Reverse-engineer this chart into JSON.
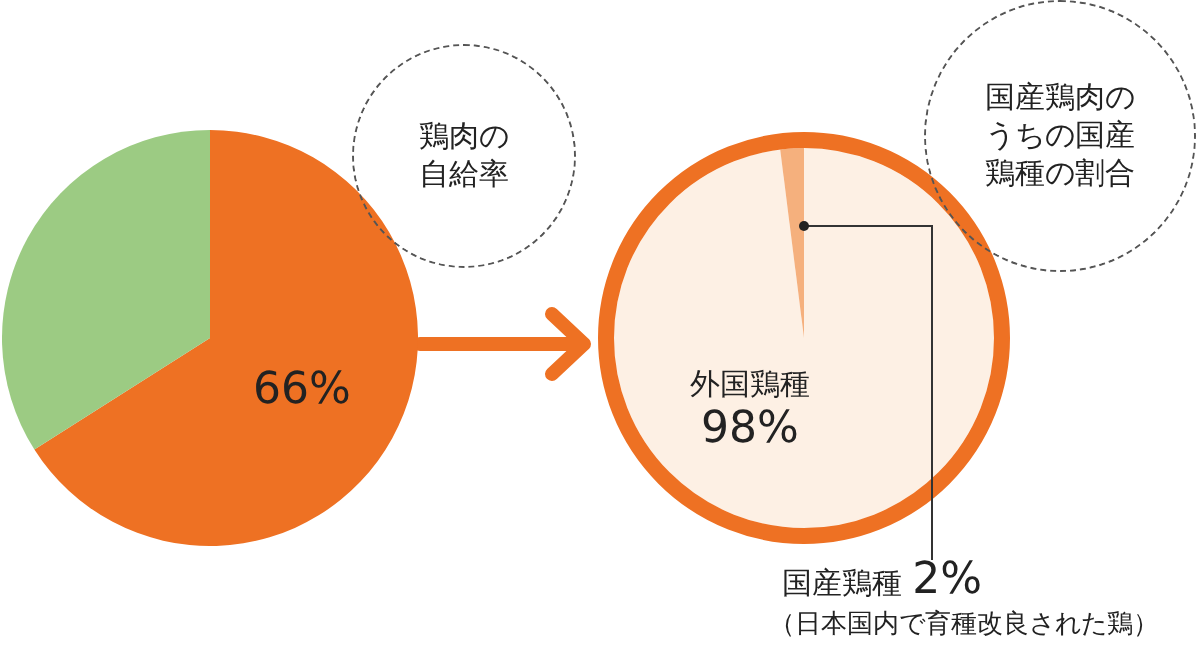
{
  "chart_data": [
    {
      "type": "pie",
      "title": "鶏肉の自給率",
      "categories": [
        null,
        null
      ],
      "values": [
        66,
        34
      ],
      "colors": [
        "#ee7123",
        "#9ccb83"
      ],
      "value_labels": [
        "66%",
        null
      ]
    },
    {
      "type": "pie",
      "title": "国産鶏肉のうちの国産鶏種の割合",
      "categories": [
        "外国鶏種",
        "国産鶏種"
      ],
      "values": [
        98,
        2
      ],
      "colors": [
        "#fdf0e4",
        "#f5b07d"
      ],
      "value_labels": [
        "98%",
        "2%"
      ],
      "annotations": [
        "（日本国内で育種改良された鶏）"
      ]
    }
  ]
}
